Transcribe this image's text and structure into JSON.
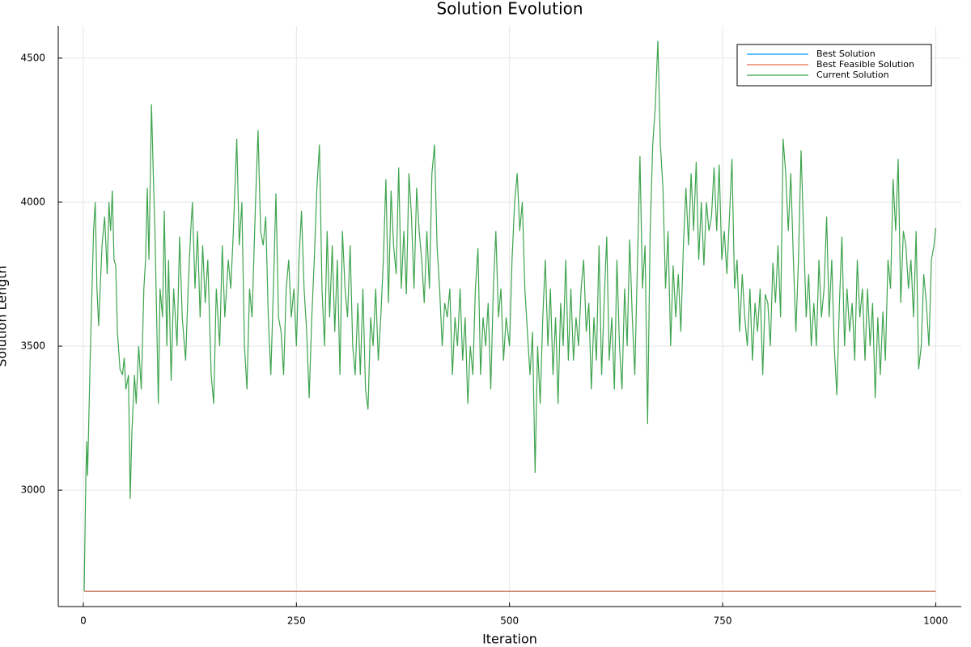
{
  "chart_data": {
    "type": "line",
    "title": "Solution Evolution",
    "xlabel": "Iteration",
    "ylabel": "Solution Length",
    "xlim": [
      -29.4,
      1030
    ],
    "ylim": [
      2596,
      4612
    ],
    "xticks": [
      0,
      250,
      500,
      750,
      1000
    ],
    "yticks": [
      3000,
      3500,
      4000,
      4500
    ],
    "grid": true,
    "legend": "topright",
    "series": [
      {
        "name": "Best Solution",
        "color": "#009af9",
        "x": [
          1,
          1000
        ],
        "values": [
          2649,
          2649
        ]
      },
      {
        "name": "Best Feasible Solution",
        "color": "#e26f46",
        "x": [
          1,
          1000
        ],
        "values": [
          2649,
          2649
        ]
      },
      {
        "name": "Current Solution",
        "color": "#3ea44e",
        "x": [
          1,
          3,
          4,
          5,
          8,
          12,
          14,
          16,
          18,
          22,
          25,
          28,
          30,
          32,
          34,
          36,
          38,
          40,
          43,
          46,
          48,
          50,
          53,
          55,
          57,
          60,
          62,
          65,
          68,
          71,
          73,
          75,
          77,
          80,
          82,
          84,
          86,
          88,
          90,
          93,
          95,
          98,
          100,
          103,
          106,
          110,
          113,
          116,
          120,
          123,
          126,
          128,
          131,
          134,
          137,
          140,
          143,
          146,
          150,
          153,
          156,
          160,
          163,
          166,
          170,
          173,
          176,
          180,
          183,
          186,
          189,
          192,
          195,
          198,
          202,
          205,
          208,
          211,
          214,
          217,
          220,
          223,
          226,
          229,
          232,
          235,
          238,
          241,
          244,
          247,
          250,
          253,
          256,
          259,
          262,
          265,
          268,
          271,
          274,
          277,
          280,
          283,
          286,
          289,
          292,
          295,
          298,
          301,
          304,
          307,
          310,
          313,
          316,
          319,
          322,
          325,
          328,
          331,
          334,
          337,
          340,
          343,
          346,
          349,
          352,
          355,
          358,
          361,
          364,
          367,
          370,
          373,
          376,
          379,
          382,
          385,
          388,
          391,
          394,
          397,
          400,
          403,
          406,
          409,
          412,
          415,
          418,
          421,
          424,
          427,
          430,
          433,
          436,
          439,
          442,
          445,
          448,
          451,
          454,
          457,
          460,
          463,
          466,
          469,
          472,
          475,
          478,
          481,
          484,
          487,
          490,
          493,
          496,
          500,
          503,
          506,
          509,
          512,
          515,
          518,
          521,
          524,
          527,
          530,
          533,
          536,
          539,
          542,
          545,
          548,
          551,
          554,
          557,
          560,
          563,
          566,
          569,
          572,
          575,
          578,
          581,
          584,
          587,
          590,
          593,
          596,
          599,
          602,
          605,
          608,
          611,
          614,
          617,
          620,
          623,
          626,
          629,
          632,
          635,
          638,
          641,
          644,
          647,
          650,
          653,
          656,
          659,
          662,
          665,
          668,
          671,
          674,
          677,
          680,
          683,
          686,
          689,
          692,
          695,
          698,
          701,
          704,
          707,
          710,
          713,
          716,
          719,
          722,
          725,
          728,
          731,
          734,
          737,
          740,
          743,
          746,
          749,
          752,
          755,
          758,
          761,
          764,
          767,
          770,
          773,
          776,
          779,
          782,
          785,
          788,
          791,
          794,
          797,
          800,
          803,
          806,
          809,
          812,
          815,
          818,
          821,
          824,
          827,
          830,
          833,
          836,
          839,
          842,
          845,
          848,
          851,
          854,
          857,
          860,
          863,
          866,
          869,
          872,
          875,
          878,
          881,
          884,
          887,
          890,
          893,
          896,
          899,
          902,
          905,
          908,
          911,
          914,
          917,
          920,
          923,
          926,
          929,
          932,
          935,
          938,
          941,
          944,
          947,
          950,
          953,
          956,
          959,
          962,
          965,
          968,
          971,
          974,
          977,
          980,
          983,
          986,
          989,
          992,
          995,
          998,
          1000
        ],
        "values": [
          2650,
          3050,
          3170,
          3050,
          3450,
          3900,
          4000,
          3700,
          3570,
          3850,
          3950,
          3750,
          4000,
          3900,
          4040,
          3800,
          3780,
          3550,
          3420,
          3400,
          3460,
          3350,
          3400,
          2970,
          3200,
          3400,
          3300,
          3500,
          3350,
          3700,
          3800,
          4050,
          3800,
          4340,
          4100,
          3900,
          3600,
          3300,
          3700,
          3600,
          3970,
          3500,
          3800,
          3380,
          3700,
          3500,
          3880,
          3600,
          3450,
          3700,
          3900,
          4000,
          3700,
          3900,
          3600,
          3850,
          3650,
          3800,
          3400,
          3300,
          3700,
          3500,
          3850,
          3600,
          3800,
          3700,
          3900,
          4220,
          3850,
          4000,
          3500,
          3350,
          3700,
          3600,
          4000,
          4250,
          3900,
          3850,
          3950,
          3600,
          3400,
          3700,
          4030,
          3600,
          3550,
          3400,
          3700,
          3800,
          3600,
          3700,
          3500,
          3800,
          3970,
          3700,
          3550,
          3320,
          3600,
          3800,
          4050,
          4200,
          3700,
          3500,
          3900,
          3600,
          3850,
          3550,
          3800,
          3400,
          3900,
          3700,
          3600,
          3850,
          3500,
          3400,
          3650,
          3400,
          3700,
          3350,
          3280,
          3600,
          3500,
          3700,
          3450,
          3600,
          3800,
          4080,
          3650,
          4040,
          3850,
          3750,
          4120,
          3700,
          3900,
          3680,
          4100,
          3950,
          3700,
          4050,
          3900,
          3800,
          3650,
          3900,
          3700,
          4100,
          4200,
          3850,
          3700,
          3500,
          3650,
          3600,
          3700,
          3400,
          3600,
          3500,
          3700,
          3450,
          3600,
          3300,
          3500,
          3400,
          3700,
          3840,
          3400,
          3600,
          3500,
          3650,
          3350,
          3700,
          3900,
          3600,
          3700,
          3450,
          3600,
          3500,
          3800,
          4000,
          4100,
          3900,
          4000,
          3700,
          3550,
          3400,
          3550,
          3060,
          3500,
          3300,
          3600,
          3800,
          3500,
          3700,
          3400,
          3600,
          3300,
          3650,
          3500,
          3800,
          3450,
          3700,
          3450,
          3600,
          3500,
          3700,
          3800,
          3550,
          3650,
          3350,
          3600,
          3450,
          3850,
          3400,
          3650,
          3880,
          3450,
          3600,
          3350,
          3800,
          3500,
          3350,
          3700,
          3500,
          3870,
          3600,
          3400,
          3780,
          4160,
          3700,
          3850,
          3230,
          3900,
          4200,
          4330,
          4560,
          4200,
          4050,
          3700,
          3900,
          3500,
          3780,
          3600,
          3750,
          3550,
          3850,
          4050,
          3850,
          4100,
          3900,
          4140,
          3800,
          4000,
          3780,
          4000,
          3900,
          3950,
          4120,
          3900,
          4130,
          3800,
          3900,
          3750,
          3950,
          4150,
          3700,
          3800,
          3550,
          3750,
          3600,
          3500,
          3700,
          3450,
          3650,
          3550,
          3700,
          3400,
          3680,
          3650,
          3500,
          3790,
          3650,
          3850,
          3600,
          4220,
          4100,
          3900,
          4100,
          3800,
          3550,
          3800,
          4180,
          3900,
          3600,
          3750,
          3500,
          3650,
          3500,
          3800,
          3600,
          3700,
          3950,
          3600,
          3800,
          3500,
          3330,
          3650,
          3880,
          3500,
          3700,
          3550,
          3650,
          3450,
          3800,
          3600,
          3700,
          3450,
          3700,
          3500,
          3650,
          3320,
          3600,
          3400,
          3620,
          3450,
          3800,
          3700,
          4080,
          3900,
          4150,
          3650,
          3900,
          3850,
          3700,
          3800,
          3600,
          3900,
          3420,
          3500,
          3750,
          3650,
          3500,
          3800,
          3850,
          3910
        ]
      }
    ]
  }
}
